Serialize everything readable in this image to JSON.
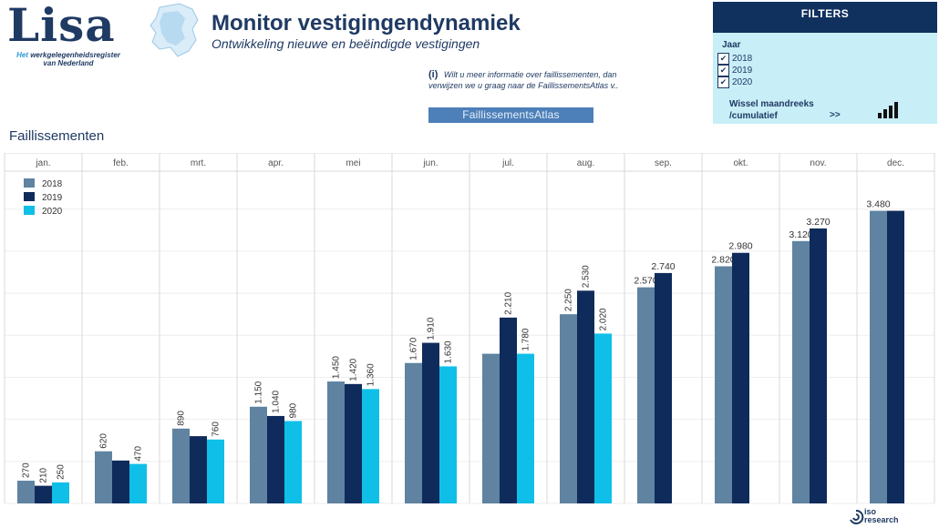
{
  "header": {
    "logo_word": "Lisa",
    "logo_sub_lead": "Het",
    "logo_sub_rest": "werkgelegenheidsregister van Nederland",
    "title": "Monitor vestigingendynamiek",
    "subtitle": "Ontwikkeling nieuwe en beëindigde vestigingen",
    "info_mark": "(i)",
    "info_text": "Wilt u meer informatie over faillissementen, dan verwijzen we u graag naar de FaillissementsAtlas v..",
    "atlas_button": "FaillissementsAtlas"
  },
  "filters": {
    "title": "FILTERS",
    "jaar_label": "Jaar",
    "years": [
      {
        "label": "2018",
        "checked": true
      },
      {
        "label": "2019",
        "checked": true
      },
      {
        "label": "2020",
        "checked": true
      }
    ],
    "wissel_line1": "Wissel maandreeks",
    "wissel_line2": "/cumulatief",
    "wissel_arrows": ">>",
    "bars_icon": "bar-chart-icon"
  },
  "section_title": "Faillissementen",
  "footer": {
    "logo_line1": "iso",
    "logo_line2": "research"
  },
  "colors": {
    "2018": "#5f83a1",
    "2019": "#0f2b5b",
    "2020": "#10bfe8"
  },
  "chart_data": {
    "type": "bar",
    "categories": [
      "jan.",
      "feb.",
      "mrt.",
      "apr.",
      "mei",
      "jun.",
      "jul.",
      "aug.",
      "sep.",
      "okt.",
      "nov.",
      "dec."
    ],
    "series": [
      {
        "name": "2018",
        "values": [
          270,
          620,
          890,
          1150,
          1450,
          1670,
          1780,
          2250,
          2570,
          2820,
          3120,
          3480
        ]
      },
      {
        "name": "2019",
        "values": [
          210,
          510,
          800,
          1040,
          1420,
          1910,
          2210,
          2530,
          2740,
          2980,
          3270,
          3480
        ]
      },
      {
        "name": "2020",
        "values": [
          250,
          470,
          760,
          980,
          1360,
          1630,
          1780,
          2020,
          null,
          null,
          null,
          null
        ]
      }
    ],
    "data_labels": [
      [
        "270",
        "620",
        "890",
        "1.150",
        "1.450",
        "1.670",
        "",
        "2.250",
        "2.570",
        "2.820",
        "3.120",
        "3.480"
      ],
      [
        "210",
        "",
        "",
        "1.040",
        "1.420",
        "1.910",
        "2.210",
        "2.530",
        "2.740",
        "2.980",
        "3.270",
        ""
      ],
      [
        "250",
        "470",
        "760",
        "980",
        "1.360",
        "1.630",
        "1.780",
        "2.020",
        "",
        "",
        "",
        ""
      ]
    ],
    "ylim": [
      0,
      3800
    ],
    "legend_position": "top-left",
    "grid": true
  }
}
